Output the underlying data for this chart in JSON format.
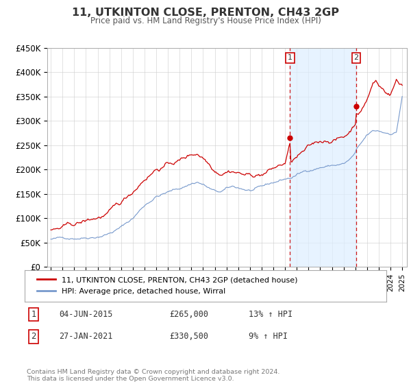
{
  "title": "11, UTKINTON CLOSE, PRENTON, CH43 2GP",
  "subtitle": "Price paid vs. HM Land Registry's House Price Index (HPI)",
  "ylim": [
    0,
    450000
  ],
  "yticks": [
    0,
    50000,
    100000,
    150000,
    200000,
    250000,
    300000,
    350000,
    400000,
    450000
  ],
  "ytick_labels": [
    "£0",
    "£50K",
    "£100K",
    "£150K",
    "£200K",
    "£250K",
    "£300K",
    "£350K",
    "£400K",
    "£450K"
  ],
  "xlim_start": 1994.7,
  "xlim_end": 2025.4,
  "legend_line1": "11, UTKINTON CLOSE, PRENTON, CH43 2GP (detached house)",
  "legend_line2": "HPI: Average price, detached house, Wirral",
  "sale1_date": 2015.42,
  "sale1_price": 265000,
  "sale2_date": 2021.07,
  "sale2_price": 330500,
  "sale1_text": "04-JUN-2015",
  "sale1_amount": "£265,000",
  "sale1_hpi": "13% ↑ HPI",
  "sale2_text": "27-JAN-2021",
  "sale2_amount": "£330,500",
  "sale2_hpi": "9% ↑ HPI",
  "price_color": "#cc0000",
  "hpi_color": "#aaccee",
  "hpi_line_color": "#7799cc",
  "shade_color": "#ddeeff",
  "background_color": "#ffffff",
  "grid_color": "#cccccc",
  "footer_text": "Contains HM Land Registry data © Crown copyright and database right 2024.\nThis data is licensed under the Open Government Licence v3.0."
}
